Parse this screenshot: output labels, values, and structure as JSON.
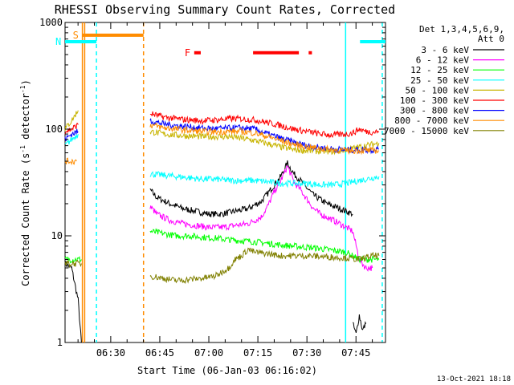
{
  "chart_data": {
    "type": "line",
    "title": "RHESSI Observing Summary Count Rates, Corrected",
    "xlabel": "Start Time (06-Jan-03 06:16:02)",
    "ylabel_main": "Corrected Count Rate (s",
    "ylabel_sup1": "-1",
    "ylabel_mid": " detector",
    "ylabel_sup2": "-1",
    "ylabel_end": ")",
    "ylabel": "Corrected Count Rate (s-1 detector-1)",
    "yscale": "log",
    "xlim_minutes": [
      0,
      98
    ],
    "ylim": [
      1,
      1000
    ],
    "yticks": [
      {
        "value": 1,
        "label": "1"
      },
      {
        "value": 10,
        "label": "10"
      },
      {
        "value": 100,
        "label": "100"
      },
      {
        "value": 1000,
        "label": "1000"
      }
    ],
    "xticks": [
      {
        "minute": 13.97,
        "label": "06:30"
      },
      {
        "minute": 28.97,
        "label": "06:45"
      },
      {
        "minute": 43.97,
        "label": "07:00"
      },
      {
        "minute": 58.97,
        "label": "07:15"
      },
      {
        "minute": 73.97,
        "label": "07:30"
      },
      {
        "minute": 88.97,
        "label": "07:45"
      }
    ],
    "legend_header": [
      "Det 1,3,4,5,6,9,",
      "Att 0"
    ],
    "series": [
      {
        "name": "3 - 6 keV",
        "color": "#000000",
        "segments": [
          {
            "x": [
              0,
              2,
              4,
              5
            ],
            "y": [
              5.5,
              5,
              2.5,
              1
            ]
          },
          {
            "x": [
              26,
              28,
              32,
              36,
              40,
              44,
              48,
              52,
              56,
              60,
              62,
              64,
              66,
              68,
              70,
              72,
              74,
              76,
              78,
              80,
              82,
              84,
              86,
              88
            ],
            "y": [
              27,
              23,
              20,
              18,
              17,
              16,
              16,
              17,
              18,
              21,
              25,
              30,
              36,
              48,
              38,
              33,
              28,
              24,
              22,
              20,
              19,
              18,
              17,
              16
            ]
          },
          {
            "x": [
              88,
              89,
              90,
              91,
              92
            ],
            "y": [
              1.5,
              1.2,
              1.8,
              1.3,
              1.5
            ]
          }
        ]
      },
      {
        "name": "6 - 12 keV",
        "color": "#ff00ff",
        "segments": [
          {
            "x": [
              26,
              28,
              32,
              36,
              40,
              44,
              48,
              52,
              56,
              60,
              62,
              64,
              66,
              68,
              70,
              72,
              74,
              76,
              78,
              80,
              82,
              84,
              86,
              88,
              90,
              92,
              94
            ],
            "y": [
              19,
              16,
              14,
              13,
              12.5,
              12,
              12,
              12.5,
              13,
              15,
              19,
              26,
              33,
              45,
              32,
              27,
              22,
              18,
              16,
              15,
              14,
              13,
              12,
              11,
              6,
              5,
              5
            ]
          }
        ]
      },
      {
        "name": "12 - 25 keV",
        "color": "#00ff00",
        "segments": [
          {
            "x": [
              0,
              2,
              4,
              5
            ],
            "y": [
              6,
              6,
              6,
              6
            ]
          },
          {
            "x": [
              26,
              30,
              34,
              38,
              42,
              46,
              50,
              54,
              58,
              62,
              66,
              70,
              74,
              78,
              82,
              86,
              90,
              94,
              96
            ],
            "y": [
              11,
              10.5,
              10,
              10,
              9.7,
              9.5,
              9.2,
              9,
              8.8,
              8.5,
              8.2,
              8,
              7.8,
              7.6,
              7.3,
              7,
              6,
              6,
              6
            ]
          }
        ]
      },
      {
        "name": "25 - 50 keV",
        "color": "#00ffff",
        "segments": [
          {
            "x": [
              0,
              2,
              4
            ],
            "y": [
              70,
              80,
              90
            ]
          },
          {
            "x": [
              26,
              30,
              34,
              38,
              42,
              46,
              50,
              54,
              58,
              62,
              66,
              70,
              74,
              78,
              82,
              86,
              90,
              94,
              96
            ],
            "y": [
              38,
              37,
              36,
              35,
              34,
              34,
              33,
              33,
              33,
              32,
              31,
              31,
              31,
              30,
              30,
              31,
              33,
              35,
              36
            ]
          }
        ]
      },
      {
        "name": "50 - 100 keV",
        "color": "#c8b400",
        "segments": [
          {
            "x": [
              0,
              2,
              4
            ],
            "y": [
              100,
              120,
              150
            ]
          },
          {
            "x": [
              26,
              30,
              34,
              38,
              42,
              46,
              50,
              54,
              58,
              62,
              66,
              70,
              74,
              78,
              82,
              86,
              90,
              94,
              96
            ],
            "y": [
              95,
              90,
              88,
              86,
              85,
              85,
              85,
              82,
              78,
              73,
              68,
              64,
              63,
              62,
              62,
              64,
              68,
              72,
              74
            ]
          }
        ]
      },
      {
        "name": "100 - 300 keV",
        "color": "#ff0000",
        "segments": [
          {
            "x": [
              0,
              2,
              4
            ],
            "y": [
              95,
              100,
              110
            ]
          },
          {
            "x": [
              26,
              30,
              34,
              38,
              42,
              46,
              50,
              54,
              58,
              62,
              66,
              70,
              74,
              78,
              82,
              86,
              88,
              90,
              92,
              94,
              96
            ],
            "y": [
              140,
              130,
              125,
              122,
              120,
              122,
              125,
              125,
              122,
              115,
              108,
              100,
              95,
              90,
              88,
              90,
              92,
              100,
              95,
              94,
              95
            ]
          }
        ]
      },
      {
        "name": "300 - 800 keV",
        "color": "#0000ff",
        "segments": [
          {
            "x": [
              0,
              2,
              4
            ],
            "y": [
              80,
              90,
              95
            ]
          },
          {
            "x": [
              26,
              30,
              34,
              38,
              42,
              46,
              50,
              54,
              58,
              62,
              66,
              70,
              74,
              78,
              82,
              86,
              90,
              94,
              96
            ],
            "y": [
              120,
              112,
              108,
              105,
              102,
              101,
              102,
              103,
              100,
              90,
              82,
              75,
              70,
              67,
              65,
              64,
              64,
              64,
              65
            ]
          }
        ]
      },
      {
        "name": "800 - 7000 keV",
        "color": "#ff8c00",
        "segments": [
          {
            "x": [
              0,
              2,
              3.5
            ],
            "y": [
              50,
              50,
              50
            ]
          },
          {
            "x": [
              26,
              30,
              34,
              38,
              42,
              46,
              50,
              54,
              58,
              62,
              66,
              70,
              74,
              78,
              82,
              86,
              90,
              94,
              96
            ],
            "y": [
              110,
              103,
              100,
              97,
              95,
              94,
              95,
              95,
              92,
              85,
              78,
              72,
              68,
              66,
              64,
              63,
              63,
              63,
              63
            ]
          }
        ]
      },
      {
        "name": "7000 - 15000 keV",
        "color": "#808000",
        "segments": [
          {
            "x": [
              0,
              2,
              4,
              5
            ],
            "y": [
              5.5,
              5.5,
              5.5,
              5.5
            ]
          },
          {
            "x": [
              26,
              30,
              34,
              38,
              42,
              46,
              50,
              52,
              54,
              56,
              58,
              62,
              66,
              70,
              74,
              78,
              82,
              86,
              90,
              94,
              96
            ],
            "y": [
              4.2,
              4,
              3.8,
              3.9,
              4,
              4.2,
              5,
              6,
              6.5,
              7.5,
              7,
              6.8,
              6.5,
              6.5,
              6.5,
              6.4,
              6.3,
              6.2,
              6,
              6.5,
              6.5
            ]
          }
        ]
      }
    ],
    "state_bars": [
      {
        "label": "S",
        "color": "#ff8c00",
        "start_minute": 5.3,
        "end_minute": 24,
        "level": 760
      },
      {
        "label": "N",
        "color": "#00ffff",
        "start_minute": 0,
        "end_minute": 9.6,
        "level": 660
      },
      {
        "label": "",
        "color": "#00ffff",
        "start_minute": 90.2,
        "end_minute": 98,
        "level": 660
      },
      {
        "label": "F",
        "color": "#ff0000",
        "start_minute": 39.5,
        "end_minute": 72.5,
        "level": 520,
        "pieces": [
          [
            39.5,
            41.5
          ],
          [
            57.5,
            71.5
          ],
          [
            74.5,
            75.5
          ]
        ]
      }
    ],
    "vertical_markers": [
      {
        "minute": 5.3,
        "color": "#ff8c00",
        "style": "solid"
      },
      {
        "minute": 6.0,
        "color": "#ff8c00",
        "style": "solid"
      },
      {
        "minute": 9.6,
        "color": "#00ffff",
        "style": "dashed"
      },
      {
        "minute": 24.0,
        "color": "#ff8c00",
        "style": "dashed"
      },
      {
        "minute": 85.8,
        "color": "#00ffff",
        "style": "solid"
      },
      {
        "minute": 97.0,
        "color": "#00ffff",
        "style": "dashed"
      }
    ],
    "footer_date": "13-Oct-2021 18:18"
  }
}
